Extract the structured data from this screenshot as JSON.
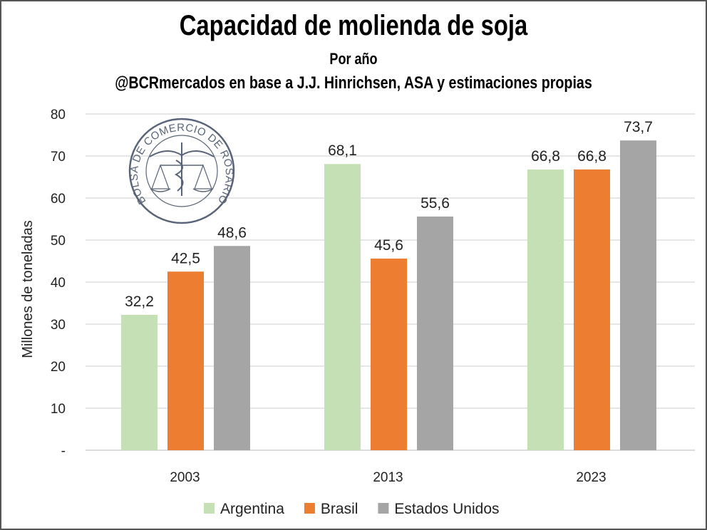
{
  "chart_data": {
    "type": "bar",
    "title": "Capacidad de molienda de soja",
    "subtitle": "Por año",
    "source": "@BCRmercados en base a J.J. Hinrichsen, ASA y estimaciones propias",
    "ylabel": "Millones de toneladas",
    "xlabel": "",
    "ylim": [
      0,
      80
    ],
    "yticks": [
      0,
      10,
      20,
      30,
      40,
      50,
      60,
      70,
      80
    ],
    "ytick_labels": [
      "-",
      "10",
      "20",
      "30",
      "40",
      "50",
      "60",
      "70",
      "80"
    ],
    "grid": true,
    "legend_position": "bottom",
    "categories": [
      "2003",
      "2013",
      "2023"
    ],
    "series": [
      {
        "name": "Argentina",
        "color": "#c5e0b4",
        "values": [
          32.2,
          68.1,
          66.8
        ],
        "labels": [
          "32,2",
          "68,1",
          "66,8"
        ]
      },
      {
        "name": "Brasil",
        "color": "#ed7d31",
        "values": [
          42.5,
          45.6,
          66.8
        ],
        "labels": [
          "42,5",
          "45,6",
          "66,8"
        ]
      },
      {
        "name": "Estados Unidos",
        "color": "#a5a5a5",
        "values": [
          48.6,
          55.6,
          73.7
        ],
        "labels": [
          "48,6",
          "55,6",
          "73,7"
        ]
      }
    ]
  },
  "logo": {
    "text": "BOLSA DE COMERCIO DE ROSARIO",
    "color": "#5a6478"
  }
}
